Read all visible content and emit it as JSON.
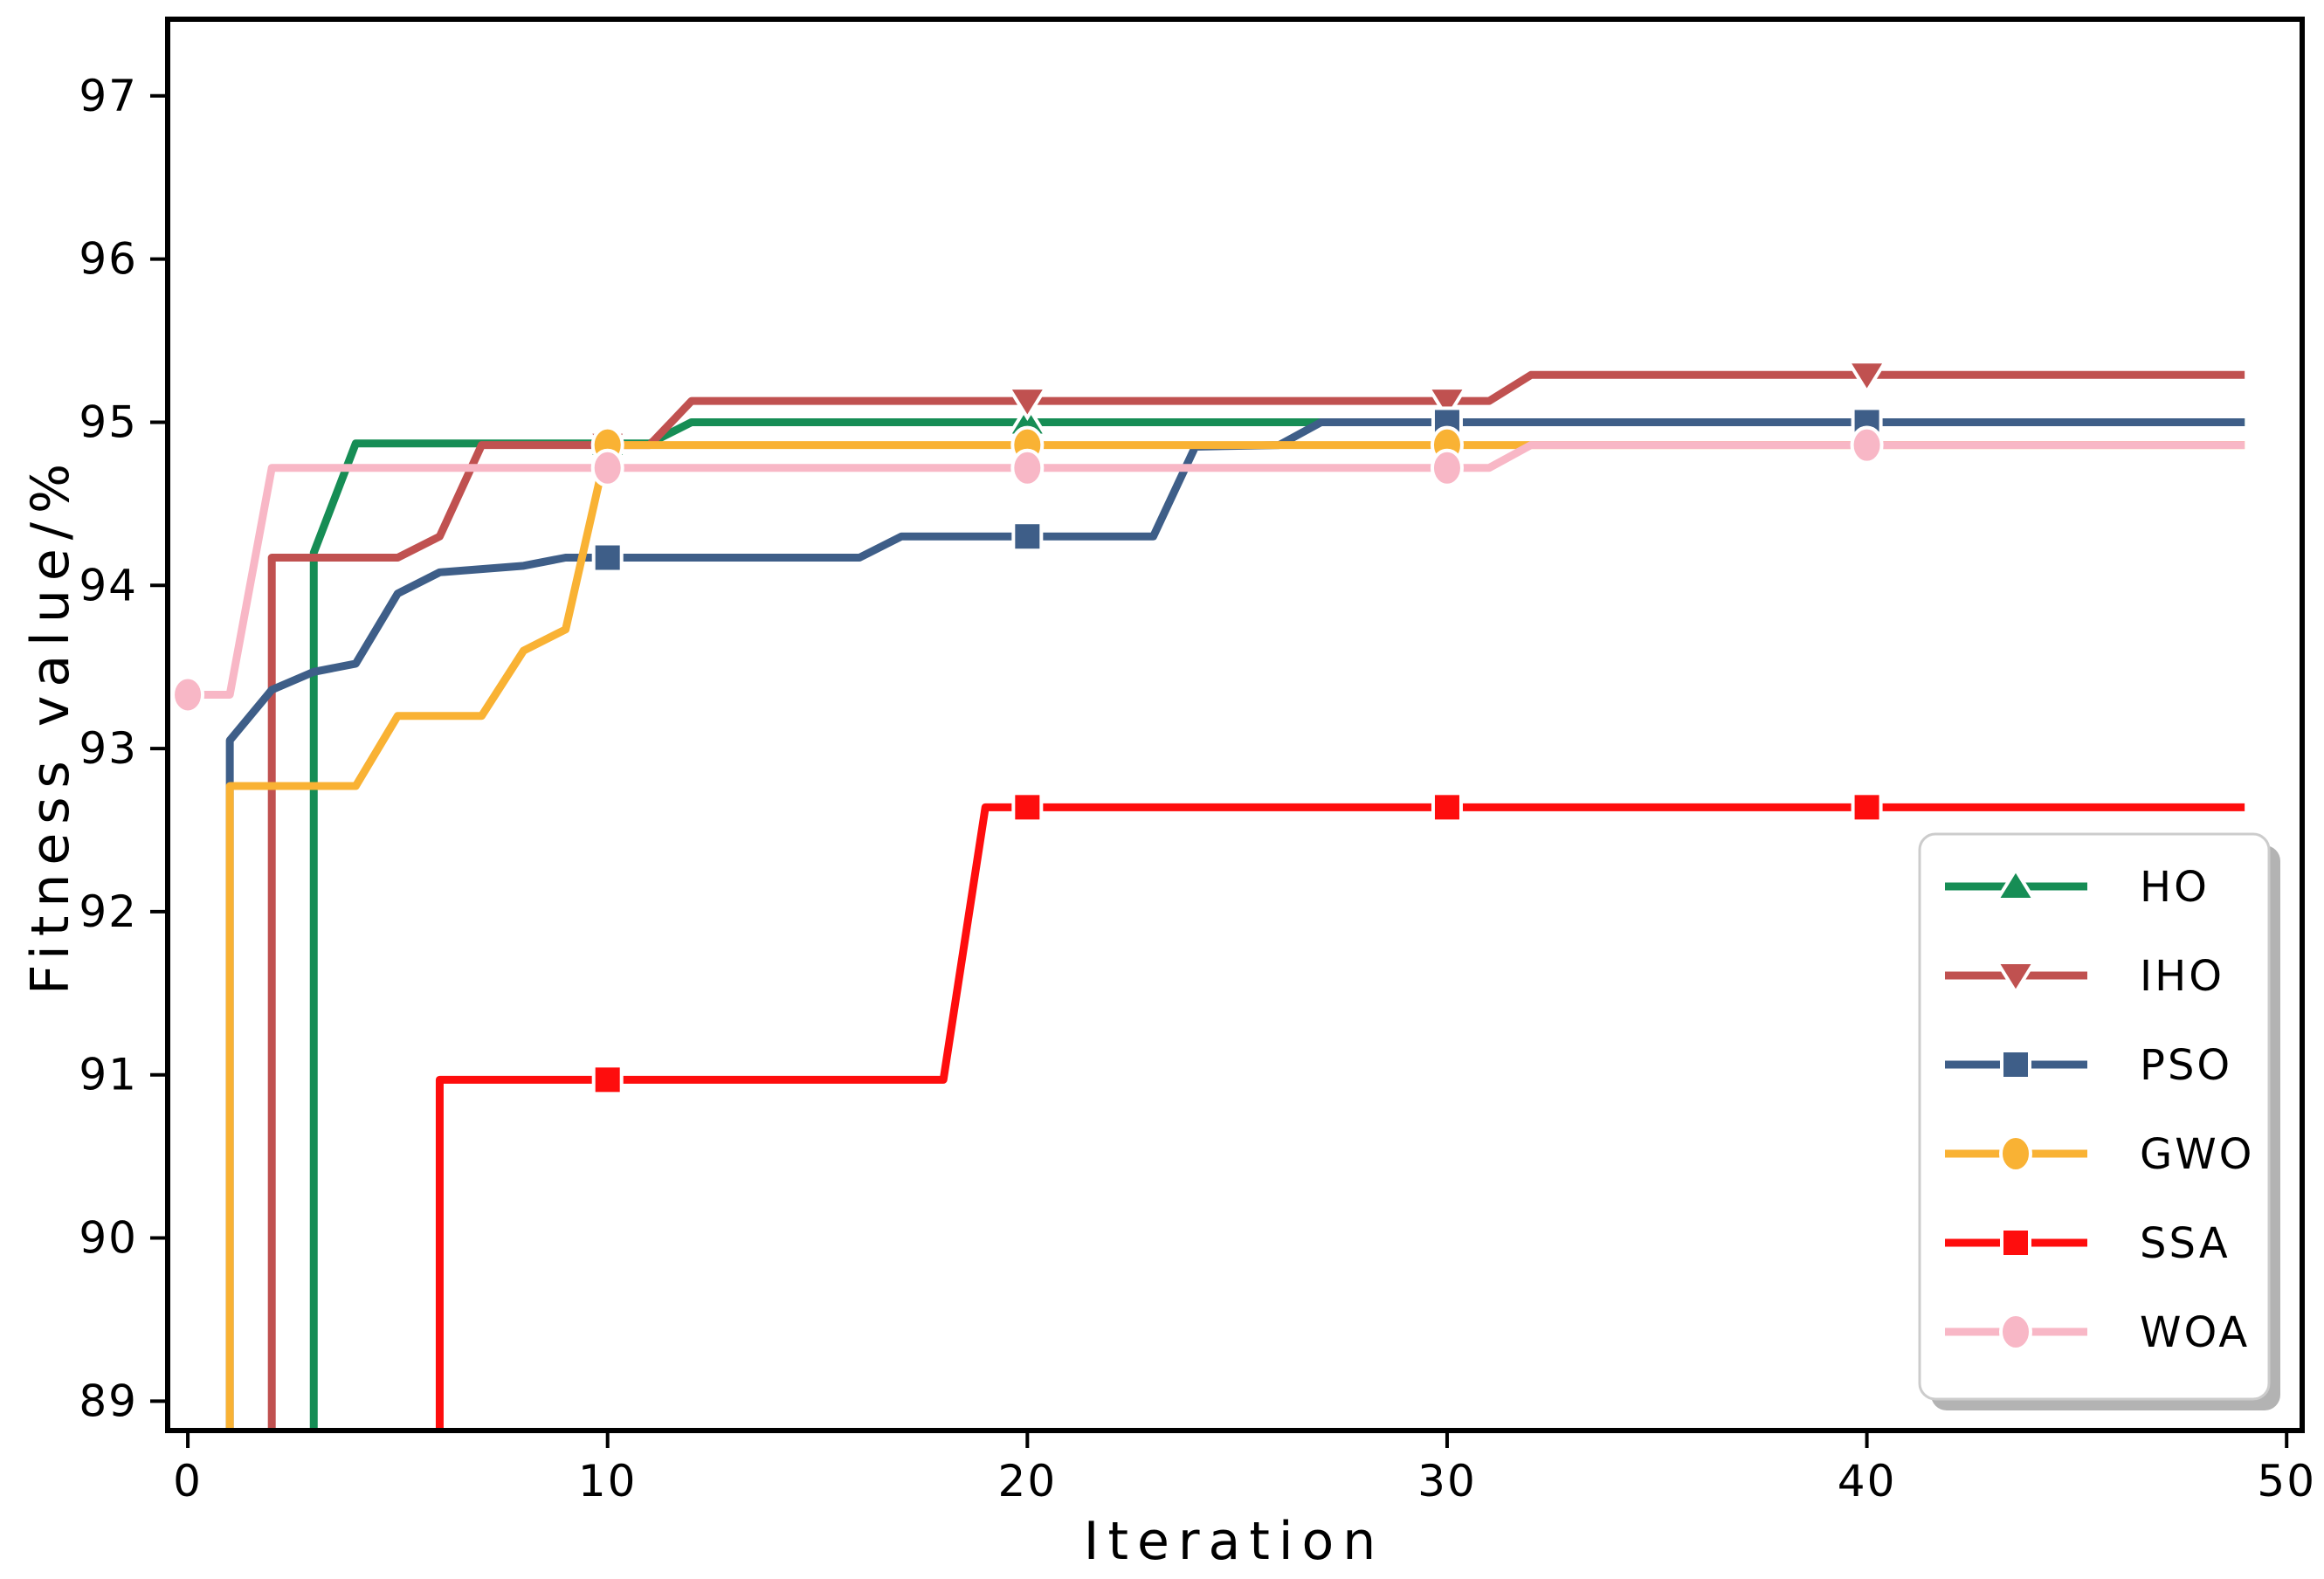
{
  "chart_data": {
    "type": "line",
    "title": "",
    "xlabel": "Iteration",
    "ylabel": "Fitness value/%",
    "x_ticks": [
      0,
      10,
      20,
      30,
      40,
      50
    ],
    "y_ticks": [
      89,
      90,
      91,
      92,
      93,
      94,
      95,
      96,
      97
    ],
    "xlim": [
      -0.48,
      50.37
    ],
    "ylim": [
      88.82,
      97.47
    ],
    "grid": false,
    "legend_position": "lower right",
    "marker_every": 10,
    "background": "#ffffff",
    "spine_color": "#000000",
    "series": [
      {
        "name": "HO",
        "color": "#168d55",
        "marker": "triangle-up",
        "line": [
          [
            3,
            88.82
          ],
          [
            3,
            94.2
          ],
          [
            4,
            94.87
          ],
          [
            11,
            94.87
          ],
          [
            12,
            95.0
          ],
          [
            49,
            95.0
          ]
        ],
        "markers": [
          [
            10,
            94.87
          ],
          [
            20,
            95.0
          ],
          [
            30,
            95.0
          ],
          [
            40,
            95.0
          ]
        ]
      },
      {
        "name": "IHO",
        "color": "#c05150",
        "marker": "triangle-down",
        "line": [
          [
            2,
            88.82
          ],
          [
            2,
            94.17
          ],
          [
            5,
            94.17
          ],
          [
            6,
            94.3
          ],
          [
            7,
            94.86
          ],
          [
            11,
            94.86
          ],
          [
            12,
            95.13
          ],
          [
            31,
            95.13
          ],
          [
            32,
            95.29
          ],
          [
            49,
            95.29
          ]
        ],
        "markers": [
          [
            10,
            94.86
          ],
          [
            20,
            95.13
          ],
          [
            30,
            95.13
          ],
          [
            40,
            95.29
          ]
        ]
      },
      {
        "name": "PSO",
        "color": "#3e5e88",
        "marker": "square",
        "line": [
          [
            1,
            88.82
          ],
          [
            1,
            93.05
          ],
          [
            2,
            93.36
          ],
          [
            3,
            93.47
          ],
          [
            4,
            93.52
          ],
          [
            5,
            93.95
          ],
          [
            6,
            94.08
          ],
          [
            8,
            94.12
          ],
          [
            9,
            94.17
          ],
          [
            16,
            94.17
          ],
          [
            17,
            94.3
          ],
          [
            23,
            94.3
          ],
          [
            24,
            94.85
          ],
          [
            26,
            94.86
          ],
          [
            27,
            95.0
          ],
          [
            49,
            95.0
          ]
        ],
        "markers": [
          [
            10,
            94.17
          ],
          [
            20,
            94.3
          ],
          [
            30,
            95.0
          ],
          [
            40,
            95.0
          ]
        ]
      },
      {
        "name": "GWO",
        "color": "#f9b234",
        "marker": "circle",
        "line": [
          [
            1,
            88.82
          ],
          [
            1,
            92.77
          ],
          [
            4,
            92.77
          ],
          [
            5,
            93.2
          ],
          [
            7,
            93.2
          ],
          [
            8,
            93.6
          ],
          [
            9,
            93.73
          ],
          [
            10,
            94.86
          ],
          [
            49,
            94.86
          ]
        ],
        "markers": [
          [
            10,
            94.86
          ],
          [
            20,
            94.86
          ],
          [
            30,
            94.86
          ],
          [
            40,
            94.86
          ]
        ]
      },
      {
        "name": "SSA",
        "color": "#fe0d0d",
        "marker": "square",
        "line": [
          [
            6,
            88.82
          ],
          [
            6,
            90.97
          ],
          [
            18,
            90.97
          ],
          [
            19,
            92.64
          ],
          [
            49,
            92.64
          ]
        ],
        "markers": [
          [
            10,
            90.97
          ],
          [
            20,
            92.64
          ],
          [
            30,
            92.64
          ],
          [
            40,
            92.64
          ]
        ]
      },
      {
        "name": "WOA",
        "color": "#f8b7c6",
        "marker": "circle",
        "line": [
          [
            0,
            93.33
          ],
          [
            1,
            93.33
          ],
          [
            2,
            94.72
          ],
          [
            31,
            94.72
          ],
          [
            32,
            94.86
          ],
          [
            49,
            94.86
          ]
        ],
        "markers": [
          [
            0,
            93.33
          ],
          [
            10,
            94.72
          ],
          [
            20,
            94.72
          ],
          [
            30,
            94.72
          ],
          [
            40,
            94.86
          ]
        ]
      }
    ]
  }
}
